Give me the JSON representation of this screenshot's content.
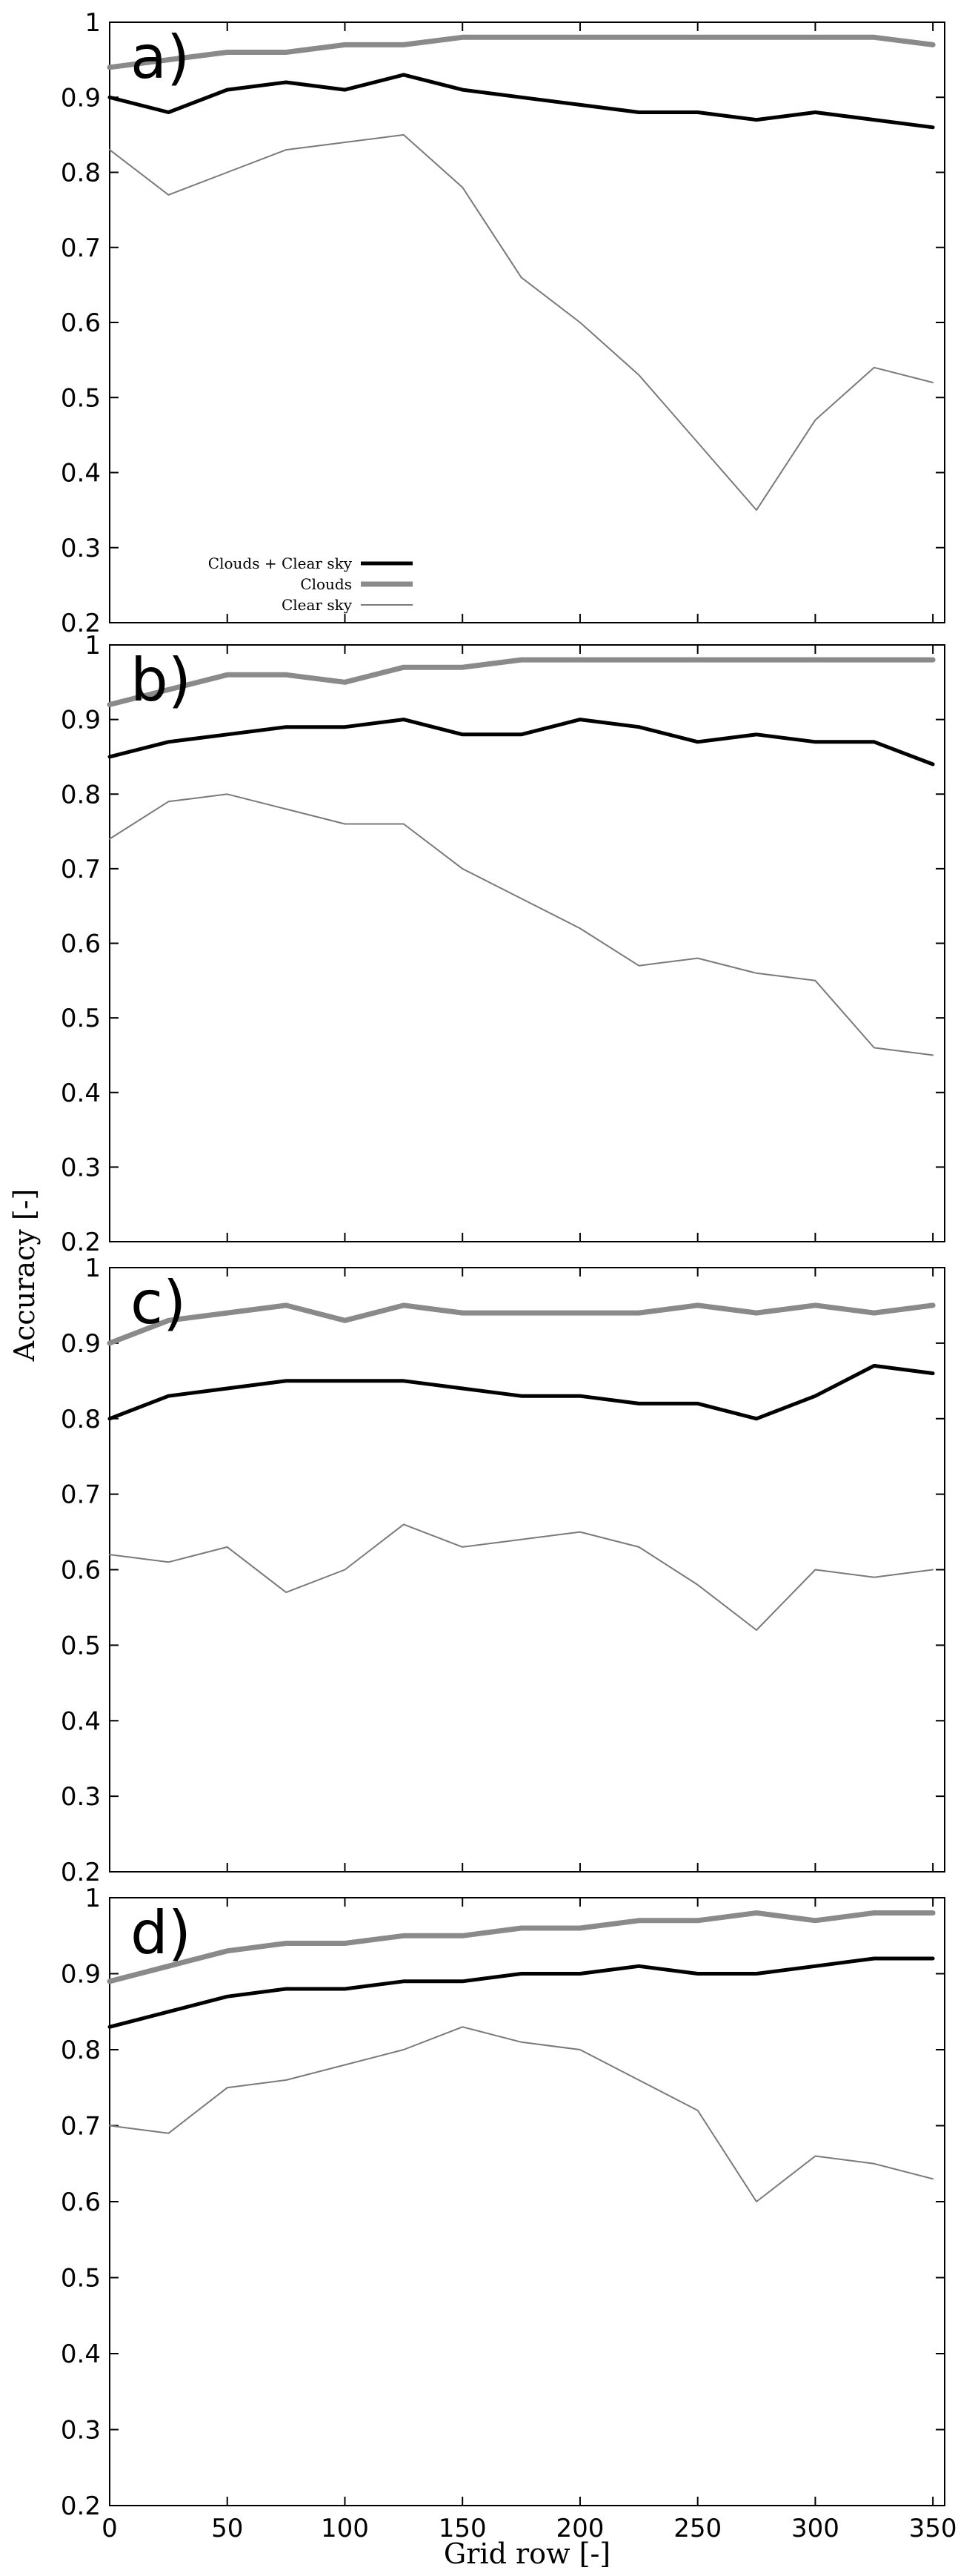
{
  "chart_data": {
    "type": "line",
    "ylabel": "Accuracy [-]",
    "xlabel": "Grid row [-]",
    "xlim": [
      0,
      355
    ],
    "ylim": [
      0.2,
      1.0
    ],
    "xticks": [
      "0",
      "50",
      "100",
      "150",
      "200",
      "250",
      "300",
      "350"
    ],
    "yticks": [
      "0.2",
      "0.3",
      "0.4",
      "0.5",
      "0.6",
      "0.7",
      "0.8",
      "0.9",
      "1"
    ],
    "legend": {
      "placement": "bottom-left of panel a",
      "entries": [
        {
          "label": "Clouds + Clear sky",
          "color": "#000000"
        },
        {
          "label": "Clouds",
          "color": "#808080"
        },
        {
          "label": "Clear sky",
          "color": "#808080"
        }
      ]
    },
    "series_styles": [
      {
        "color": "#000000",
        "width": 5
      },
      {
        "color": "#8a8a8a",
        "width": 7
      },
      {
        "color": "#7a7a7a",
        "width": 2
      }
    ],
    "panels": [
      {
        "label": "a)",
        "x": [
          0,
          25,
          50,
          75,
          100,
          125,
          150,
          175,
          200,
          225,
          250,
          275,
          300,
          325,
          350
        ],
        "series": [
          {
            "name": "Clouds + Clear sky",
            "values": [
              0.9,
              0.88,
              0.91,
              0.92,
              0.91,
              0.93,
              0.91,
              0.9,
              0.89,
              0.88,
              0.88,
              0.87,
              0.88,
              0.87,
              0.86
            ]
          },
          {
            "name": "Clouds",
            "values": [
              0.94,
              0.95,
              0.96,
              0.96,
              0.97,
              0.97,
              0.98,
              0.98,
              0.98,
              0.98,
              0.98,
              0.98,
              0.98,
              0.98,
              0.97
            ]
          },
          {
            "name": "Clear sky",
            "values": [
              0.83,
              0.77,
              0.8,
              0.83,
              0.84,
              0.85,
              0.78,
              0.66,
              0.6,
              0.53,
              0.44,
              0.35,
              0.47,
              0.54,
              0.52
            ]
          }
        ]
      },
      {
        "label": "b)",
        "x": [
          0,
          25,
          50,
          75,
          100,
          125,
          150,
          175,
          200,
          225,
          250,
          275,
          300,
          325,
          350
        ],
        "series": [
          {
            "name": "Clouds + Clear sky",
            "values": [
              0.85,
              0.87,
              0.88,
              0.89,
              0.89,
              0.9,
              0.88,
              0.88,
              0.9,
              0.89,
              0.87,
              0.88,
              0.87,
              0.87,
              0.84
            ]
          },
          {
            "name": "Clouds",
            "values": [
              0.92,
              0.94,
              0.96,
              0.96,
              0.95,
              0.97,
              0.97,
              0.98,
              0.98,
              0.98,
              0.98,
              0.98,
              0.98,
              0.98,
              0.98
            ]
          },
          {
            "name": "Clear sky",
            "values": [
              0.74,
              0.79,
              0.8,
              0.78,
              0.76,
              0.76,
              0.7,
              0.66,
              0.62,
              0.57,
              0.58,
              0.56,
              0.55,
              0.46,
              0.45
            ]
          }
        ]
      },
      {
        "label": "c)",
        "x": [
          0,
          25,
          50,
          75,
          100,
          125,
          150,
          175,
          200,
          225,
          250,
          275,
          300,
          325,
          350
        ],
        "series": [
          {
            "name": "Clouds + Clear sky",
            "values": [
              0.8,
              0.83,
              0.84,
              0.85,
              0.85,
              0.85,
              0.84,
              0.83,
              0.83,
              0.82,
              0.82,
              0.8,
              0.83,
              0.87,
              0.86
            ]
          },
          {
            "name": "Clouds",
            "values": [
              0.9,
              0.93,
              0.94,
              0.95,
              0.93,
              0.95,
              0.94,
              0.94,
              0.94,
              0.94,
              0.95,
              0.94,
              0.95,
              0.94,
              0.95
            ]
          },
          {
            "name": "Clear sky",
            "values": [
              0.62,
              0.61,
              0.63,
              0.57,
              0.6,
              0.66,
              0.63,
              0.64,
              0.65,
              0.63,
              0.58,
              0.52,
              0.6,
              0.59,
              0.6
            ]
          }
        ]
      },
      {
        "label": "d)",
        "x": [
          0,
          25,
          50,
          75,
          100,
          125,
          150,
          175,
          200,
          225,
          250,
          275,
          300,
          325,
          350
        ],
        "series": [
          {
            "name": "Clouds + Clear sky",
            "values": [
              0.83,
              0.85,
              0.87,
              0.88,
              0.88,
              0.89,
              0.89,
              0.9,
              0.9,
              0.91,
              0.9,
              0.9,
              0.91,
              0.92,
              0.92
            ]
          },
          {
            "name": "Clouds",
            "values": [
              0.89,
              0.91,
              0.93,
              0.94,
              0.94,
              0.95,
              0.95,
              0.96,
              0.96,
              0.97,
              0.97,
              0.98,
              0.97,
              0.98,
              0.98
            ]
          },
          {
            "name": "Clear sky",
            "values": [
              0.7,
              0.69,
              0.75,
              0.76,
              0.78,
              0.8,
              0.83,
              0.81,
              0.8,
              0.76,
              0.72,
              0.6,
              0.66,
              0.65,
              0.63
            ]
          }
        ]
      }
    ]
  }
}
